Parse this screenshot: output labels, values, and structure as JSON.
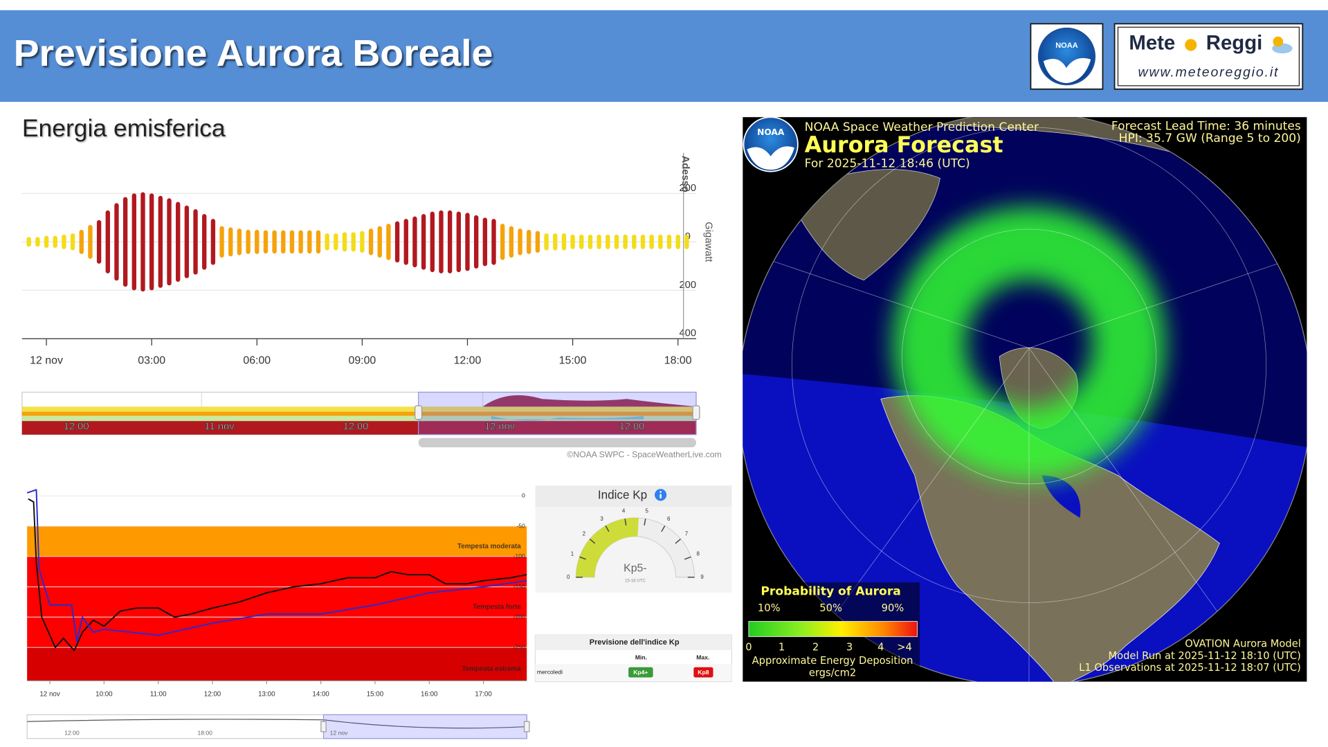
{
  "header": {
    "title": "Previsione Aurora Boreale",
    "noaa_logo": "NOAA",
    "brand_left": "Mete",
    "brand_right": "Reggi",
    "brand_url": "www.meteoreggio.it"
  },
  "section_title": "Energia emisferica",
  "chart_data": [
    {
      "type": "bar",
      "mirrored": true,
      "now_label": "Adesso",
      "ylabel": "Gigawatt",
      "xlim": [
        -0.55,
        18.35
      ],
      "xticks": [
        {
          "value": 0,
          "label": "12 nov"
        },
        {
          "value": 3,
          "label": "03:00"
        },
        {
          "value": 6,
          "label": "06:00"
        },
        {
          "value": 9,
          "label": "09:00"
        },
        {
          "value": 12,
          "label": "12:00"
        },
        {
          "value": 15,
          "label": "15:00"
        },
        {
          "value": 18,
          "label": "18:00"
        }
      ],
      "ylim": [
        -400,
        396
      ],
      "yticks": [
        200,
        0,
        {
          "value": -200,
          "label": "200"
        },
        {
          "value": -400,
          "label": "400"
        }
      ],
      "grid": true,
      "series": [
        {
          "color": "#f3dc1a",
          "x": [
            -0.5,
            -0.25,
            0,
            0.25,
            0.5,
            0.75,
            8,
            8.25,
            8.5,
            8.75,
            9,
            14.25,
            14.5,
            14.75,
            15,
            15.25,
            15.5,
            15.75,
            16,
            16.25,
            16.5,
            16.75,
            17,
            17.25,
            17.5,
            17.75,
            18,
            18.25
          ],
          "values": [
            20,
            20,
            25,
            25,
            30,
            35,
            35,
            35,
            40,
            40,
            45,
            35,
            35,
            35,
            30,
            30,
            30,
            30,
            30,
            30,
            30,
            30,
            30,
            30,
            30,
            30,
            30,
            30
          ]
        },
        {
          "color": "#f5a30c",
          "x": [
            1,
            1.25,
            5,
            5.25,
            5.5,
            5.75,
            6,
            6.25,
            6.5,
            6.75,
            7,
            7.25,
            7.5,
            7.75,
            9.25,
            9.5,
            9.75,
            13,
            13.25,
            13.5,
            13.75,
            14
          ],
          "values": [
            50,
            70,
            65,
            60,
            55,
            50,
            50,
            48,
            48,
            48,
            48,
            48,
            48,
            48,
            55,
            65,
            75,
            75,
            65,
            55,
            50,
            45
          ]
        },
        {
          "color": "#b1191f",
          "x": [
            1.5,
            1.75,
            2,
            2.25,
            2.5,
            2.75,
            3,
            3.25,
            3.5,
            3.75,
            4,
            4.25,
            4.5,
            4.75,
            10,
            10.25,
            10.5,
            10.75,
            11,
            11.25,
            11.5,
            11.75,
            12,
            12.25,
            12.5,
            12.75
          ],
          "values": [
            90,
            130,
            160,
            185,
            200,
            205,
            200,
            190,
            180,
            165,
            150,
            135,
            115,
            95,
            85,
            95,
            105,
            115,
            125,
            130,
            130,
            125,
            120,
            110,
            100,
            95
          ]
        }
      ]
    },
    {
      "type": "line",
      "xlim": [
        8.58,
        17.8
      ],
      "xticks": [
        {
          "value": 9,
          "label": "12 nov"
        },
        {
          "value": 10,
          "label": "10:00"
        },
        {
          "value": 11,
          "label": "11:00"
        },
        {
          "value": 12,
          "label": "12:00"
        },
        {
          "value": 13,
          "label": "13:00"
        },
        {
          "value": 14,
          "label": "14:00"
        },
        {
          "value": 15,
          "label": "15:00"
        },
        {
          "value": 16,
          "label": "16:00"
        },
        {
          "value": 17,
          "label": "17:00"
        }
      ],
      "ylim": [
        -305,
        17
      ],
      "yticks": [
        0,
        -50,
        -100,
        -150,
        -200,
        -250
      ],
      "bands": [
        {
          "label": "Tempesta moderata",
          "from": -50,
          "to": -100,
          "color": "#ff9900"
        },
        {
          "label": "Tempesta forte",
          "from": -100,
          "to": -250,
          "color": "#ff0000"
        },
        {
          "label": "Tempesta estrema",
          "from": -250,
          "to": -305,
          "color": "#d60000"
        }
      ],
      "series": [
        {
          "color": "#111111",
          "x": [
            8.6,
            8.7,
            8.75,
            8.85,
            9.0,
            9.1,
            9.25,
            9.45,
            9.6,
            9.8,
            10.0,
            10.3,
            10.6,
            11.0,
            11.3,
            11.6,
            12.0,
            12.5,
            13.0,
            13.5,
            14.0,
            14.5,
            15.0,
            15.3,
            15.6,
            16.0,
            16.3,
            16.7,
            17.0,
            17.5,
            17.8
          ],
          "values": [
            -5,
            -10,
            -110,
            -200,
            -230,
            -250,
            -235,
            -255,
            -225,
            -205,
            -215,
            -190,
            -185,
            -185,
            -200,
            -195,
            -185,
            -175,
            -160,
            -150,
            -145,
            -135,
            -135,
            -125,
            -130,
            -130,
            -145,
            -145,
            -140,
            -135,
            -130
          ]
        },
        {
          "color": "#2a2ad0",
          "x": [
            8.58,
            8.75,
            8.8,
            9.0,
            9.4,
            9.5,
            9.6,
            9.8,
            10.0,
            11.0,
            12.0,
            13.0,
            14.0,
            15.0,
            16.0,
            17.0,
            17.8
          ],
          "values": [
            5,
            10,
            -120,
            -180,
            -180,
            -240,
            -200,
            -225,
            -220,
            -230,
            -210,
            -195,
            -195,
            -180,
            -160,
            -150,
            -140
          ]
        }
      ]
    },
    {
      "type": "gauge",
      "title": "Indice Kp",
      "value": 4.67,
      "value_label": "Kp5-",
      "subtitle": "15-18 UTC",
      "ylim": [
        0,
        9
      ],
      "yticks": [
        0,
        1,
        2,
        3,
        4,
        5,
        6,
        7,
        8,
        9
      ],
      "color": "#cddc39"
    }
  ],
  "navigator": {
    "labels": [
      "12:00",
      "11 nov",
      "12:00",
      "12 nov",
      "12:00"
    ]
  },
  "navigator2": {
    "labels": [
      "12:00",
      "18:00",
      "12 nov"
    ]
  },
  "credit": "©NOAA SWPC - SpaceWeatherLive.com",
  "kp_table": {
    "title": "Previsione dell'indice Kp",
    "columns": [
      "Min.",
      "Max."
    ],
    "rows": [
      [
        "mercoledi",
        "Kp4+",
        "Kp8"
      ]
    ]
  },
  "aurora_map": {
    "logo": "NOAA",
    "center": "NOAA Space Weather Prediction Center",
    "title": "Aurora Forecast",
    "date": "For 2025-11-12 18:46 (UTC)",
    "lead_time": "Forecast Lead Time:  36 minutes",
    "hpi": "HPI:  35.7 GW (Range 5 to 200)",
    "legend_title": "Probability of Aurora",
    "legend_percents": [
      "10%",
      "50%",
      "90%"
    ],
    "colorbar_ticks": [
      "0",
      "1",
      "2",
      "3",
      "4",
      ">4"
    ],
    "colorbar_title": "Approximate Energy Deposition",
    "colorbar_unit": "ergs/cm2",
    "model": "OVATION Aurora Model",
    "model_run": "Model Run at 2025-11-12 18:10 (UTC)",
    "observations": "L1 Observations at 2025-11-12 18:07 (UTC)"
  }
}
